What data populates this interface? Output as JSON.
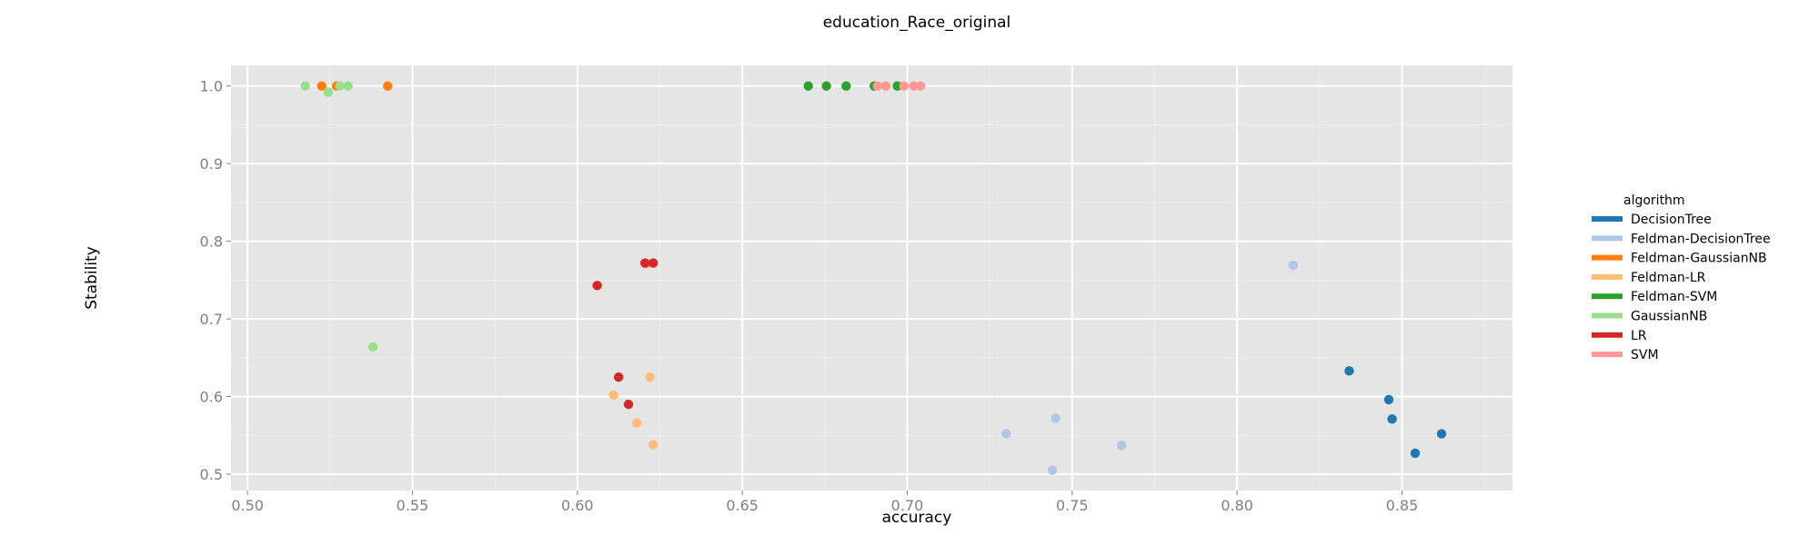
{
  "chart_data": {
    "type": "scatter",
    "title": "education_Race_original",
    "xlabel": "accuracy",
    "ylabel": "Stability",
    "xlim": [
      0.495,
      0.8835
    ],
    "ylim": [
      0.479,
      1.0265
    ],
    "x_ticks": [
      "0.50",
      "0.55",
      "0.60",
      "0.65",
      "0.70",
      "0.75",
      "0.80",
      "0.85"
    ],
    "y_ticks": [
      "0.5",
      "0.6",
      "0.7",
      "0.8",
      "0.9",
      "1.0"
    ],
    "grid": true,
    "legend_position": "right",
    "legend_title": "algorithm",
    "series": [
      {
        "name": "DecisionTree",
        "color": "#1f77b4",
        "points": [
          [
            0.834,
            0.633
          ],
          [
            0.846,
            0.596
          ],
          [
            0.847,
            0.571
          ],
          [
            0.854,
            0.527
          ],
          [
            0.862,
            0.552
          ]
        ]
      },
      {
        "name": "Feldman-DecisionTree",
        "color": "#aec7e8",
        "points": [
          [
            0.817,
            0.769
          ],
          [
            0.73,
            0.552
          ],
          [
            0.745,
            0.572
          ],
          [
            0.744,
            0.505
          ],
          [
            0.765,
            0.537
          ]
        ]
      },
      {
        "name": "Feldman-GaussianNB",
        "color": "#ff7f0e",
        "points": [
          [
            0.5225,
            1.0
          ],
          [
            0.527,
            1.0
          ],
          [
            0.5425,
            1.0
          ]
        ]
      },
      {
        "name": "Feldman-LR",
        "color": "#ffbb78",
        "points": [
          [
            0.621,
            0.771
          ],
          [
            0.611,
            0.602
          ],
          [
            0.622,
            0.625
          ],
          [
            0.618,
            0.566
          ],
          [
            0.623,
            0.538
          ]
        ]
      },
      {
        "name": "Feldman-SVM",
        "color": "#2ca02c",
        "points": [
          [
            0.67,
            1.0
          ],
          [
            0.6755,
            1.0
          ],
          [
            0.6815,
            1.0
          ],
          [
            0.69,
            1.0
          ],
          [
            0.697,
            1.0
          ]
        ]
      },
      {
        "name": "GaussianNB",
        "color": "#98df8a",
        "points": [
          [
            0.5175,
            1.0
          ],
          [
            0.5245,
            0.992
          ],
          [
            0.528,
            1.0
          ],
          [
            0.5305,
            1.0
          ],
          [
            0.538,
            0.664
          ]
        ]
      },
      {
        "name": "LR",
        "color": "#d62728",
        "points": [
          [
            0.6205,
            0.772
          ],
          [
            0.623,
            0.772
          ],
          [
            0.606,
            0.743
          ],
          [
            0.6125,
            0.625
          ],
          [
            0.6155,
            0.59
          ]
        ]
      },
      {
        "name": "SVM",
        "color": "#ff9896",
        "points": [
          [
            0.691,
            1.0
          ],
          [
            0.6935,
            1.0
          ],
          [
            0.699,
            1.0
          ],
          [
            0.702,
            1.0
          ],
          [
            0.704,
            1.0
          ]
        ]
      }
    ]
  }
}
